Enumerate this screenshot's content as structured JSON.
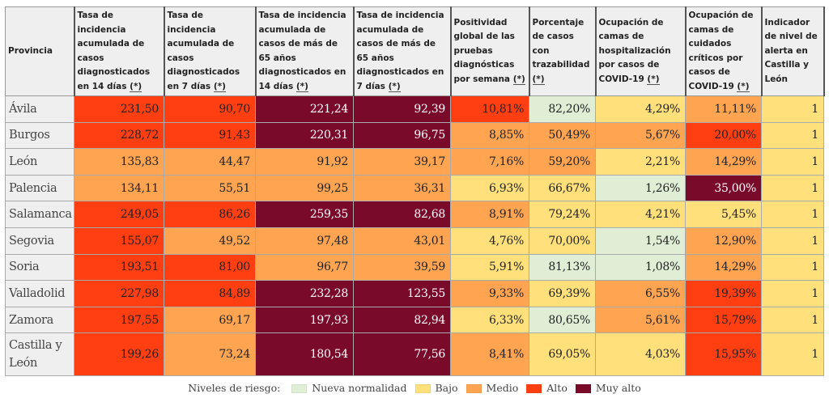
{
  "columns": [
    {
      "label": "Provincia",
      "note": ""
    },
    {
      "label": "Tasa de incidencia acumulada de casos diagnosticados en 14 días",
      "note": "(*)"
    },
    {
      "label": "Tasa de incidencia acumulada de casos diagnosticados en 7 días",
      "note": "(*)"
    },
    {
      "label": "Tasa de incidencia acumulada de casos de más de 65 años diagnosticados en 14 días",
      "note": "(*)"
    },
    {
      "label": "Tasa de incidencia acumulada de casos de más de 65 años diagnosticados en 7 días",
      "note": "(*)"
    },
    {
      "label": "Positividad global de las pruebas diagnósticas por semana",
      "note": "(*)"
    },
    {
      "label": "Porcentaje de casos con trazabilidad",
      "note": "(*)"
    },
    {
      "label": "Ocupación de camas de hospitalización por casos de COVID-19",
      "note": "(*)"
    },
    {
      "label": "Ocupación de camas de cuidados críticos por casos de COVID-19",
      "note": "(*)"
    },
    {
      "label": "Indicador de nivel de alerta en Castilla y León",
      "note": ""
    }
  ],
  "rows": [
    {
      "provincia": "Ávila",
      "values": [
        "231,50",
        "90,70",
        "221,24",
        "92,39",
        "10,81%",
        "82,20%",
        "4,29%",
        "11,11%",
        "1"
      ],
      "levels": [
        "a",
        "a",
        "x",
        "x",
        "a",
        "n",
        "b",
        "m",
        "b"
      ]
    },
    {
      "provincia": "Burgos",
      "values": [
        "228,72",
        "91,43",
        "220,31",
        "96,75",
        "8,85%",
        "50,49%",
        "5,67%",
        "20,00%",
        "1"
      ],
      "levels": [
        "a",
        "a",
        "x",
        "x",
        "m",
        "m",
        "m",
        "a",
        "b"
      ]
    },
    {
      "provincia": "León",
      "values": [
        "135,83",
        "44,47",
        "91,92",
        "39,17",
        "7,16%",
        "59,20%",
        "2,21%",
        "14,29%",
        "1"
      ],
      "levels": [
        "m",
        "m",
        "m",
        "m",
        "m",
        "m",
        "b",
        "m",
        "b"
      ]
    },
    {
      "provincia": "Palencia",
      "values": [
        "134,11",
        "55,51",
        "99,25",
        "36,31",
        "6,93%",
        "66,67%",
        "1,26%",
        "35,00%",
        "1"
      ],
      "levels": [
        "m",
        "m",
        "m",
        "m",
        "b",
        "b",
        "n",
        "x",
        "b"
      ]
    },
    {
      "provincia": "Salamanca",
      "values": [
        "249,05",
        "86,26",
        "259,35",
        "82,68",
        "8,91%",
        "79,24%",
        "4,21%",
        "5,45%",
        "1"
      ],
      "levels": [
        "a",
        "a",
        "x",
        "x",
        "m",
        "b",
        "b",
        "b",
        "b"
      ]
    },
    {
      "provincia": "Segovia",
      "values": [
        "155,07",
        "49,52",
        "97,48",
        "43,01",
        "4,76%",
        "70,00%",
        "1,54%",
        "12,90%",
        "1"
      ],
      "levels": [
        "a",
        "m",
        "m",
        "m",
        "b",
        "b",
        "n",
        "m",
        "b"
      ]
    },
    {
      "provincia": "Soria",
      "values": [
        "193,51",
        "81,00",
        "96,77",
        "39,59",
        "5,91%",
        "81,13%",
        "1,08%",
        "14,29%",
        "1"
      ],
      "levels": [
        "a",
        "a",
        "m",
        "m",
        "b",
        "n",
        "n",
        "m",
        "b"
      ]
    },
    {
      "provincia": "Valladolid",
      "values": [
        "227,98",
        "84,89",
        "232,28",
        "123,55",
        "9,33%",
        "69,39%",
        "6,55%",
        "19,39%",
        "1"
      ],
      "levels": [
        "a",
        "a",
        "x",
        "x",
        "m",
        "b",
        "m",
        "a",
        "b"
      ]
    },
    {
      "provincia": "Zamora",
      "values": [
        "197,55",
        "69,17",
        "197,93",
        "82,94",
        "6,33%",
        "80,65%",
        "5,61%",
        "15,79%",
        "1"
      ],
      "levels": [
        "a",
        "m",
        "x",
        "x",
        "b",
        "n",
        "m",
        "a",
        "b"
      ]
    },
    {
      "provincia": "Castilla y León",
      "values": [
        "199,26",
        "73,24",
        "180,54",
        "77,56",
        "8,41%",
        "69,05%",
        "4,03%",
        "15,95%",
        "1"
      ],
      "levels": [
        "a",
        "m",
        "x",
        "x",
        "m",
        "b",
        "b",
        "a",
        "b"
      ]
    }
  ],
  "legend": {
    "title": "Niveles de riesgo:",
    "items": [
      {
        "code": "n",
        "label": "Nueva normalidad",
        "color": "#dfeed5"
      },
      {
        "code": "b",
        "label": "Bajo",
        "color": "#ffe07a"
      },
      {
        "code": "m",
        "label": "Medio",
        "color": "#ffa552"
      },
      {
        "code": "a",
        "label": "Alto",
        "color": "#ff3f12"
      },
      {
        "code": "x",
        "label": "Muy alto",
        "color": "#7a0a2a"
      }
    ]
  }
}
